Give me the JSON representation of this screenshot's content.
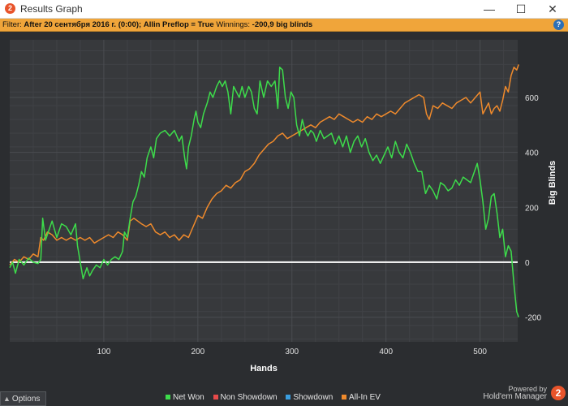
{
  "window": {
    "title": "Results Graph",
    "app_icon": "hm2-logo-icon",
    "minimize": "—",
    "maximize": "☐",
    "close": "✕"
  },
  "filter": {
    "label": "Filter:",
    "value": "After 20 сентября 2016 г. (0:00); Allin Preflop = True",
    "winnings_label": "Winnings:",
    "winnings_value": "-200,9 big blinds",
    "help": "?"
  },
  "options": {
    "label": "Options",
    "icon": "chevron-up-icon"
  },
  "legend": [
    {
      "label": "Net Won",
      "color": "#3ddc4b"
    },
    {
      "label": "Non Showdown",
      "color": "#e84a4a"
    },
    {
      "label": "Showdown",
      "color": "#3a9ee0"
    },
    {
      "label": "All-In EV",
      "color": "#ef8a2c"
    }
  ],
  "branding": {
    "powered": "Powered by",
    "product": "Hold'em Manager",
    "logo": "2"
  },
  "chart_data": {
    "type": "line",
    "xlabel": "Hands",
    "ylabel": "Big Blinds",
    "xlim": [
      0,
      540
    ],
    "ylim": [
      -290,
      810
    ],
    "x_ticks": [
      100,
      200,
      300,
      400,
      500
    ],
    "y_ticks": [
      -200,
      0,
      200,
      400,
      600
    ],
    "grid": true,
    "zero_line": true,
    "series": [
      {
        "name": "Net Won",
        "color": "#3ddc4b",
        "points": [
          [
            0,
            -20
          ],
          [
            3,
            0
          ],
          [
            6,
            -40
          ],
          [
            10,
            10
          ],
          [
            15,
            -10
          ],
          [
            20,
            15
          ],
          [
            25,
            0
          ],
          [
            30,
            -5
          ],
          [
            33,
            10
          ],
          [
            35,
            160
          ],
          [
            38,
            80
          ],
          [
            42,
            120
          ],
          [
            45,
            150
          ],
          [
            50,
            90
          ],
          [
            55,
            140
          ],
          [
            60,
            130
          ],
          [
            65,
            100
          ],
          [
            70,
            140
          ],
          [
            72,
            60
          ],
          [
            75,
            0
          ],
          [
            78,
            -60
          ],
          [
            82,
            -20
          ],
          [
            85,
            -50
          ],
          [
            88,
            -30
          ],
          [
            92,
            -10
          ],
          [
            96,
            -20
          ],
          [
            100,
            10
          ],
          [
            104,
            -10
          ],
          [
            108,
            10
          ],
          [
            112,
            20
          ],
          [
            116,
            10
          ],
          [
            120,
            40
          ],
          [
            122,
            110
          ],
          [
            125,
            90
          ],
          [
            128,
            160
          ],
          [
            131,
            220
          ],
          [
            134,
            240
          ],
          [
            137,
            280
          ],
          [
            140,
            330
          ],
          [
            143,
            310
          ],
          [
            146,
            380
          ],
          [
            150,
            420
          ],
          [
            153,
            380
          ],
          [
            156,
            450
          ],
          [
            160,
            470
          ],
          [
            165,
            480
          ],
          [
            170,
            460
          ],
          [
            175,
            480
          ],
          [
            180,
            440
          ],
          [
            183,
            460
          ],
          [
            186,
            380
          ],
          [
            188,
            340
          ],
          [
            190,
            420
          ],
          [
            193,
            460
          ],
          [
            196,
            520
          ],
          [
            198,
            550
          ],
          [
            200,
            510
          ],
          [
            203,
            490
          ],
          [
            206,
            540
          ],
          [
            210,
            580
          ],
          [
            213,
            620
          ],
          [
            216,
            600
          ],
          [
            220,
            640
          ],
          [
            223,
            660
          ],
          [
            226,
            640
          ],
          [
            229,
            660
          ],
          [
            232,
            620
          ],
          [
            235,
            540
          ],
          [
            238,
            640
          ],
          [
            241,
            620
          ],
          [
            244,
            600
          ],
          [
            247,
            640
          ],
          [
            250,
            600
          ],
          [
            254,
            640
          ],
          [
            257,
            620
          ],
          [
            260,
            560
          ],
          [
            263,
            540
          ],
          [
            266,
            660
          ],
          [
            270,
            600
          ],
          [
            274,
            660
          ],
          [
            278,
            640
          ],
          [
            282,
            660
          ],
          [
            285,
            560
          ],
          [
            287,
            710
          ],
          [
            290,
            700
          ],
          [
            293,
            600
          ],
          [
            296,
            560
          ],
          [
            299,
            620
          ],
          [
            302,
            600
          ],
          [
            305,
            500
          ],
          [
            308,
            460
          ],
          [
            311,
            520
          ],
          [
            314,
            480
          ],
          [
            317,
            460
          ],
          [
            320,
            480
          ],
          [
            323,
            470
          ],
          [
            326,
            440
          ],
          [
            330,
            480
          ],
          [
            334,
            450
          ],
          [
            338,
            460
          ],
          [
            342,
            470
          ],
          [
            346,
            430
          ],
          [
            350,
            460
          ],
          [
            354,
            420
          ],
          [
            358,
            460
          ],
          [
            362,
            400
          ],
          [
            366,
            440
          ],
          [
            370,
            460
          ],
          [
            374,
            420
          ],
          [
            378,
            450
          ],
          [
            382,
            400
          ],
          [
            386,
            370
          ],
          [
            390,
            390
          ],
          [
            394,
            360
          ],
          [
            398,
            390
          ],
          [
            402,
            420
          ],
          [
            406,
            380
          ],
          [
            410,
            440
          ],
          [
            414,
            400
          ],
          [
            418,
            380
          ],
          [
            422,
            430
          ],
          [
            426,
            400
          ],
          [
            430,
            360
          ],
          [
            434,
            330
          ],
          [
            438,
            330
          ],
          [
            442,
            250
          ],
          [
            446,
            280
          ],
          [
            450,
            260
          ],
          [
            454,
            230
          ],
          [
            458,
            290
          ],
          [
            462,
            280
          ],
          [
            466,
            260
          ],
          [
            470,
            270
          ],
          [
            474,
            300
          ],
          [
            478,
            280
          ],
          [
            482,
            310
          ],
          [
            486,
            300
          ],
          [
            490,
            290
          ],
          [
            494,
            330
          ],
          [
            497,
            360
          ],
          [
            500,
            300
          ],
          [
            503,
            220
          ],
          [
            506,
            120
          ],
          [
            509,
            160
          ],
          [
            512,
            240
          ],
          [
            515,
            250
          ],
          [
            518,
            180
          ],
          [
            521,
            90
          ],
          [
            524,
            120
          ],
          [
            527,
            20
          ],
          [
            530,
            60
          ],
          [
            533,
            40
          ],
          [
            536,
            -80
          ],
          [
            539,
            -180
          ],
          [
            541,
            -200
          ]
        ]
      },
      {
        "name": "All-In EV",
        "color": "#ef8a2c",
        "points": [
          [
            0,
            -10
          ],
          [
            5,
            10
          ],
          [
            10,
            0
          ],
          [
            15,
            20
          ],
          [
            20,
            10
          ],
          [
            25,
            30
          ],
          [
            30,
            20
          ],
          [
            33,
            90
          ],
          [
            36,
            80
          ],
          [
            40,
            110
          ],
          [
            45,
            100
          ],
          [
            50,
            80
          ],
          [
            55,
            90
          ],
          [
            60,
            80
          ],
          [
            65,
            90
          ],
          [
            70,
            80
          ],
          [
            75,
            90
          ],
          [
            80,
            80
          ],
          [
            85,
            90
          ],
          [
            90,
            70
          ],
          [
            95,
            80
          ],
          [
            100,
            90
          ],
          [
            105,
            100
          ],
          [
            110,
            90
          ],
          [
            115,
            110
          ],
          [
            120,
            100
          ],
          [
            125,
            80
          ],
          [
            128,
            150
          ],
          [
            132,
            160
          ],
          [
            136,
            150
          ],
          [
            140,
            140
          ],
          [
            145,
            130
          ],
          [
            150,
            140
          ],
          [
            155,
            110
          ],
          [
            160,
            100
          ],
          [
            165,
            110
          ],
          [
            170,
            90
          ],
          [
            175,
            100
          ],
          [
            180,
            80
          ],
          [
            185,
            100
          ],
          [
            190,
            90
          ],
          [
            195,
            130
          ],
          [
            200,
            170
          ],
          [
            205,
            160
          ],
          [
            210,
            200
          ],
          [
            215,
            230
          ],
          [
            220,
            250
          ],
          [
            225,
            260
          ],
          [
            230,
            280
          ],
          [
            235,
            270
          ],
          [
            240,
            290
          ],
          [
            245,
            300
          ],
          [
            250,
            330
          ],
          [
            255,
            340
          ],
          [
            260,
            360
          ],
          [
            265,
            390
          ],
          [
            270,
            410
          ],
          [
            275,
            430
          ],
          [
            280,
            440
          ],
          [
            285,
            460
          ],
          [
            290,
            470
          ],
          [
            295,
            450
          ],
          [
            300,
            460
          ],
          [
            305,
            470
          ],
          [
            310,
            480
          ],
          [
            315,
            490
          ],
          [
            320,
            500
          ],
          [
            325,
            490
          ],
          [
            330,
            510
          ],
          [
            335,
            520
          ],
          [
            340,
            530
          ],
          [
            345,
            520
          ],
          [
            350,
            540
          ],
          [
            355,
            530
          ],
          [
            360,
            520
          ],
          [
            365,
            510
          ],
          [
            370,
            520
          ],
          [
            375,
            510
          ],
          [
            380,
            530
          ],
          [
            385,
            520
          ],
          [
            390,
            540
          ],
          [
            395,
            530
          ],
          [
            400,
            540
          ],
          [
            405,
            550
          ],
          [
            410,
            540
          ],
          [
            415,
            560
          ],
          [
            420,
            580
          ],
          [
            425,
            590
          ],
          [
            430,
            600
          ],
          [
            435,
            610
          ],
          [
            440,
            600
          ],
          [
            443,
            540
          ],
          [
            446,
            520
          ],
          [
            450,
            570
          ],
          [
            455,
            560
          ],
          [
            460,
            580
          ],
          [
            465,
            570
          ],
          [
            470,
            560
          ],
          [
            475,
            580
          ],
          [
            480,
            590
          ],
          [
            485,
            600
          ],
          [
            490,
            580
          ],
          [
            495,
            600
          ],
          [
            500,
            620
          ],
          [
            503,
            540
          ],
          [
            506,
            560
          ],
          [
            509,
            580
          ],
          [
            512,
            540
          ],
          [
            515,
            560
          ],
          [
            518,
            570
          ],
          [
            521,
            550
          ],
          [
            524,
            590
          ],
          [
            527,
            640
          ],
          [
            530,
            620
          ],
          [
            533,
            680
          ],
          [
            536,
            710
          ],
          [
            539,
            700
          ],
          [
            541,
            720
          ]
        ]
      }
    ]
  }
}
